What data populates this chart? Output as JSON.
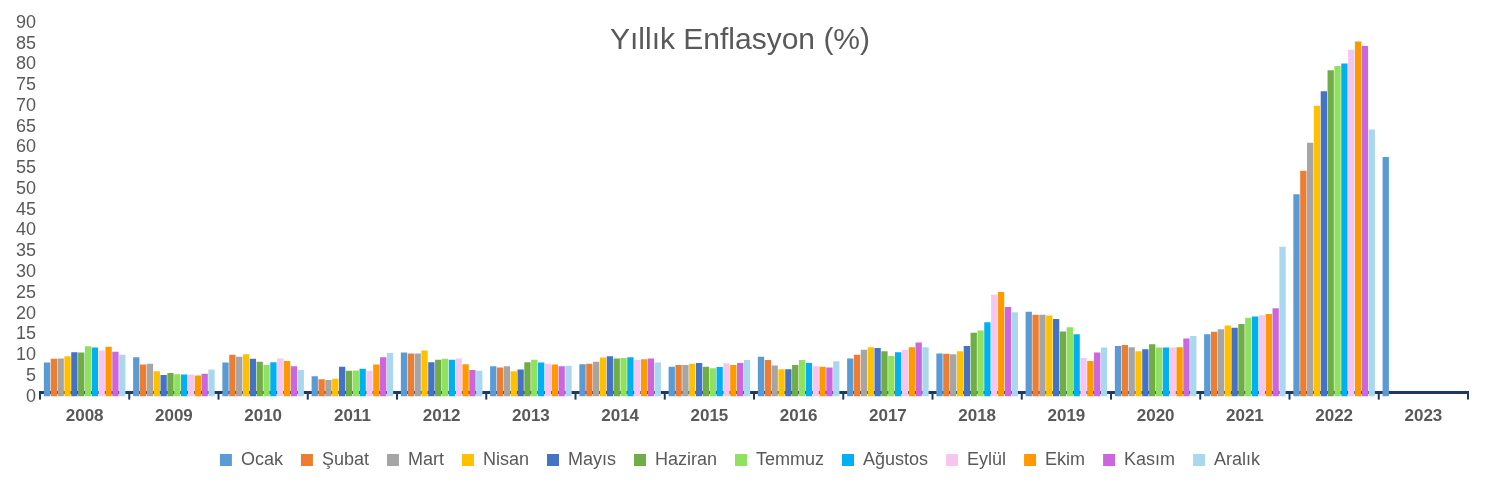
{
  "chart_data": {
    "type": "bar",
    "title": "Yıllık Enflasyon (%)",
    "categories": [
      "2008",
      "2009",
      "2010",
      "2011",
      "2012",
      "2013",
      "2014",
      "2015",
      "2016",
      "2017",
      "2018",
      "2019",
      "2020",
      "2021",
      "2022",
      "2023"
    ],
    "series": [
      {
        "name": "Ocak",
        "color": "#5b9bd5",
        "values": [
          8.2,
          9.5,
          8.2,
          4.9,
          10.6,
          7.3,
          7.8,
          7.2,
          9.6,
          9.2,
          10.4,
          20.4,
          12.2,
          15.0,
          48.7,
          57.7
        ]
      },
      {
        "name": "Şubat",
        "color": "#ed7d31",
        "values": [
          9.1,
          7.7,
          10.1,
          4.2,
          10.4,
          7.0,
          7.9,
          7.6,
          8.8,
          10.1,
          10.3,
          19.7,
          12.4,
          15.6,
          54.4,
          null
        ]
      },
      {
        "name": "Mart",
        "color": "#a5a5a5",
        "values": [
          9.2,
          7.9,
          9.6,
          4.0,
          10.4,
          7.3,
          8.4,
          7.6,
          7.5,
          11.3,
          10.2,
          19.7,
          11.9,
          16.2,
          61.1,
          null
        ]
      },
      {
        "name": "Nisan",
        "color": "#ffc000",
        "values": [
          9.7,
          6.1,
          10.2,
          4.3,
          11.1,
          6.1,
          9.4,
          7.9,
          6.6,
          11.9,
          10.9,
          19.5,
          10.9,
          17.1,
          70.0,
          null
        ]
      },
      {
        "name": "Mayıs",
        "color": "#4472c4",
        "values": [
          10.7,
          5.2,
          9.1,
          7.2,
          8.3,
          6.5,
          9.7,
          8.1,
          6.6,
          11.7,
          12.2,
          18.7,
          11.4,
          16.6,
          73.5,
          null
        ]
      },
      {
        "name": "Haziran",
        "color": "#70ad47",
        "values": [
          10.6,
          5.7,
          8.4,
          6.2,
          8.9,
          8.3,
          9.2,
          7.2,
          7.6,
          10.9,
          15.4,
          15.7,
          12.6,
          17.5,
          78.6,
          null
        ]
      },
      {
        "name": "Temmuz",
        "color": "#8fe15f",
        "values": [
          12.1,
          5.4,
          7.6,
          6.3,
          9.1,
          8.9,
          9.3,
          6.8,
          8.8,
          9.8,
          15.9,
          16.7,
          11.8,
          19.0,
          79.6,
          null
        ]
      },
      {
        "name": "Ağustos",
        "color": "#00b0f0",
        "values": [
          11.8,
          5.3,
          8.3,
          6.7,
          8.9,
          8.2,
          9.5,
          7.1,
          8.1,
          10.7,
          17.9,
          15.0,
          11.8,
          19.3,
          80.2,
          null
        ]
      },
      {
        "name": "Eylül",
        "color": "#f7c6f0",
        "values": [
          11.1,
          5.3,
          9.2,
          6.2,
          9.2,
          7.9,
          8.9,
          8.0,
          7.3,
          11.2,
          24.5,
          9.3,
          11.8,
          19.6,
          83.5,
          null
        ]
      },
      {
        "name": "Ekim",
        "color": "#ff9900",
        "values": [
          12.0,
          5.1,
          8.6,
          7.7,
          7.8,
          7.7,
          9.0,
          7.6,
          7.2,
          11.9,
          25.2,
          8.6,
          11.9,
          19.9,
          85.5,
          null
        ]
      },
      {
        "name": "Kasım",
        "color": "#cc66dd",
        "values": [
          10.8,
          5.5,
          7.3,
          9.5,
          6.4,
          7.3,
          9.2,
          8.1,
          7.0,
          13.0,
          21.6,
          10.6,
          14.0,
          21.3,
          84.4,
          null
        ]
      },
      {
        "name": "Aralık",
        "color": "#a9d8ee",
        "values": [
          10.1,
          6.5,
          6.4,
          10.5,
          6.2,
          7.4,
          8.2,
          8.8,
          8.5,
          11.9,
          20.3,
          11.8,
          14.6,
          36.1,
          64.3,
          null
        ]
      }
    ],
    "ylim": [
      0,
      90
    ],
    "yticks": [
      0,
      5,
      10,
      15,
      20,
      25,
      30,
      35,
      40,
      45,
      50,
      55,
      60,
      65,
      70,
      75,
      80,
      85,
      90
    ],
    "grid": false,
    "legend": "bottom"
  }
}
